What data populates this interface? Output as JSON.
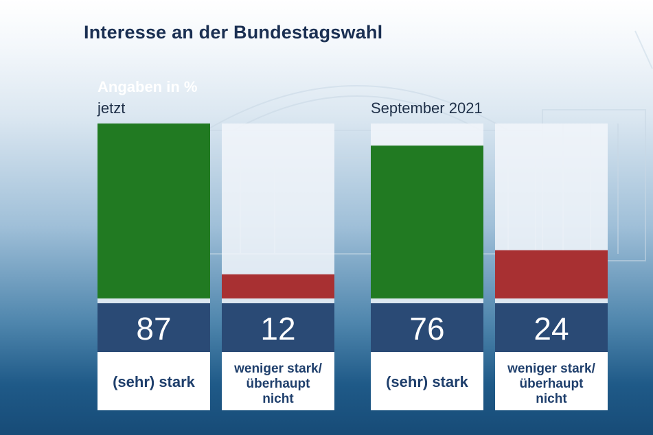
{
  "title": "Interesse an der Bundestagswahl",
  "unit_note": "Angaben in %",
  "colors": {
    "positive": "#217a22",
    "negative": "#a83032",
    "value_band": "#2a4a75",
    "panel": "#f2f6fa",
    "label_box": "#ffffff",
    "label_text": "#1f3f6c"
  },
  "chart_data": {
    "type": "bar",
    "title": "Interesse an der Bundestagswahl",
    "ylabel": "Angaben in %",
    "ylim": [
      0,
      87
    ],
    "groups": [
      {
        "name": "jetzt",
        "bars": [
          {
            "category": "(sehr) stark",
            "value": 87,
            "label": "87",
            "color": "positive"
          },
          {
            "category": "weniger stark/ überhaupt nicht",
            "value": 12,
            "label": "12",
            "color": "negative"
          }
        ]
      },
      {
        "name": "September 2021",
        "bars": [
          {
            "category": "(sehr) stark",
            "value": 76,
            "label": "76",
            "color": "positive"
          },
          {
            "category": "weniger stark/ überhaupt nicht",
            "value": 24,
            "label": "24",
            "color": "negative"
          }
        ]
      }
    ]
  },
  "category_labels": {
    "stark": [
      "(sehr) stark"
    ],
    "weniger": [
      "weniger stark/",
      "überhaupt",
      "nicht"
    ]
  }
}
